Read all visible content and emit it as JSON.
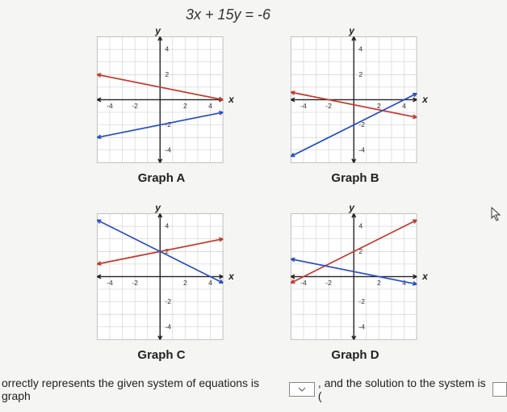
{
  "equation": "3x + 15y = -6",
  "axis_labels": {
    "x": "x",
    "y": "y"
  },
  "grid": {
    "xlim": [
      -5,
      5
    ],
    "ylim": [
      -5,
      5
    ],
    "xticks": [
      -4,
      -2,
      2,
      4
    ],
    "yticks": [
      -4,
      -2,
      2,
      4
    ],
    "grid_color": "#c8c8c8",
    "axis_color": "#222222",
    "tick_fontsize": 10
  },
  "line_colors": {
    "red": "#c43a2e",
    "blue": "#2a4fc4"
  },
  "graphs": [
    {
      "id": "A",
      "label": "Graph A",
      "red": {
        "p1": [
          -5,
          2
        ],
        "p2": [
          5,
          0
        ]
      },
      "blue": {
        "p1": [
          -5,
          -3
        ],
        "p2": [
          5,
          -1
        ]
      }
    },
    {
      "id": "B",
      "label": "Graph B",
      "red": {
        "p1": [
          -5,
          0.6
        ],
        "p2": [
          5,
          -1.4
        ]
      },
      "blue": {
        "p1": [
          -5,
          -4.5
        ],
        "p2": [
          5,
          0.5
        ]
      }
    },
    {
      "id": "C",
      "label": "Graph C",
      "red": {
        "p1": [
          -5,
          1
        ],
        "p2": [
          5,
          3
        ]
      },
      "blue": {
        "p1": [
          -5,
          4.5
        ],
        "p2": [
          5,
          -0.5
        ]
      }
    },
    {
      "id": "D",
      "label": "Graph D",
      "red": {
        "p1": [
          -5,
          -0.5
        ],
        "p2": [
          5,
          4.5
        ]
      },
      "blue": {
        "p1": [
          -5,
          1.4
        ],
        "p2": [
          5,
          -0.6
        ]
      }
    }
  ],
  "footer": {
    "pre": "orrectly represents the given system of equations is graph",
    "mid": ", and the solution to the system is (",
    "dropdown_placeholder": "",
    "input_value": ""
  },
  "page_bg": "#f5f5f3"
}
